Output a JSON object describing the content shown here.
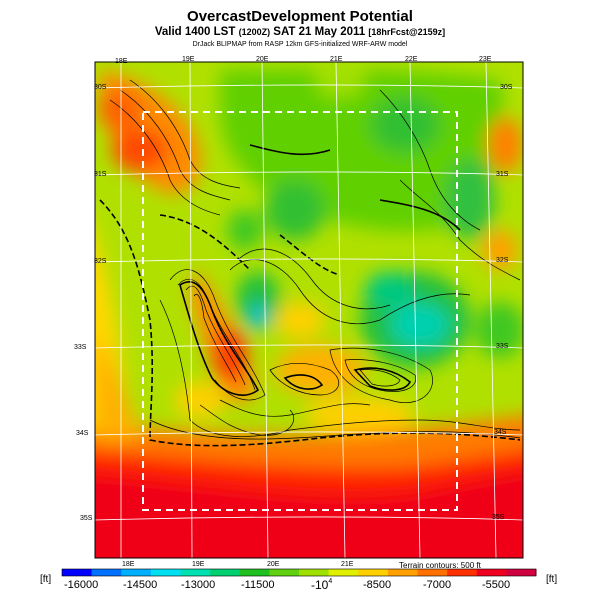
{
  "title": "OvercastDevelopment Potential",
  "subtitle_prefix": "Valid 1400 LST",
  "subtitle_utc": "(1200Z)",
  "subtitle_date": "SAT 21 May 2011",
  "subtitle_fcst": "[18hrFcst@2159z]",
  "credit": "DrJack BLIPMAP from RASP 12km GFS-initialized WRF-ARW model",
  "map": {
    "lon_labels_top": [
      "18E",
      "19E",
      "20E",
      "21E",
      "22E",
      "23E"
    ],
    "lon_labels_bottom": [
      "18E",
      "19E",
      "20E",
      "21E"
    ],
    "lat_labels_left": [
      "30S",
      "31S",
      "32S",
      "33S",
      "34S",
      "35S"
    ],
    "lat_labels_right": [
      "30S",
      "31S",
      "32S",
      "33S",
      "34S",
      "35S"
    ],
    "contour_note": "Terrain contours: 500 ft"
  },
  "colorbar": {
    "unit_left": "[ft]",
    "unit_right": "[ft]",
    "tick_labels": [
      "-16000",
      "-14500",
      "-13000",
      "-11500",
      "-8500",
      "-7000",
      "-5500"
    ],
    "middle_base": "-10",
    "middle_exp": "4",
    "colors": [
      "#0000ff",
      "#0070ff",
      "#00b0ff",
      "#00e0f0",
      "#00e0b0",
      "#00d070",
      "#20c020",
      "#60d010",
      "#a0e000",
      "#e0f000",
      "#ffd000",
      "#ffa000",
      "#ff7000",
      "#ff3000",
      "#f00020",
      "#d00040"
    ]
  }
}
